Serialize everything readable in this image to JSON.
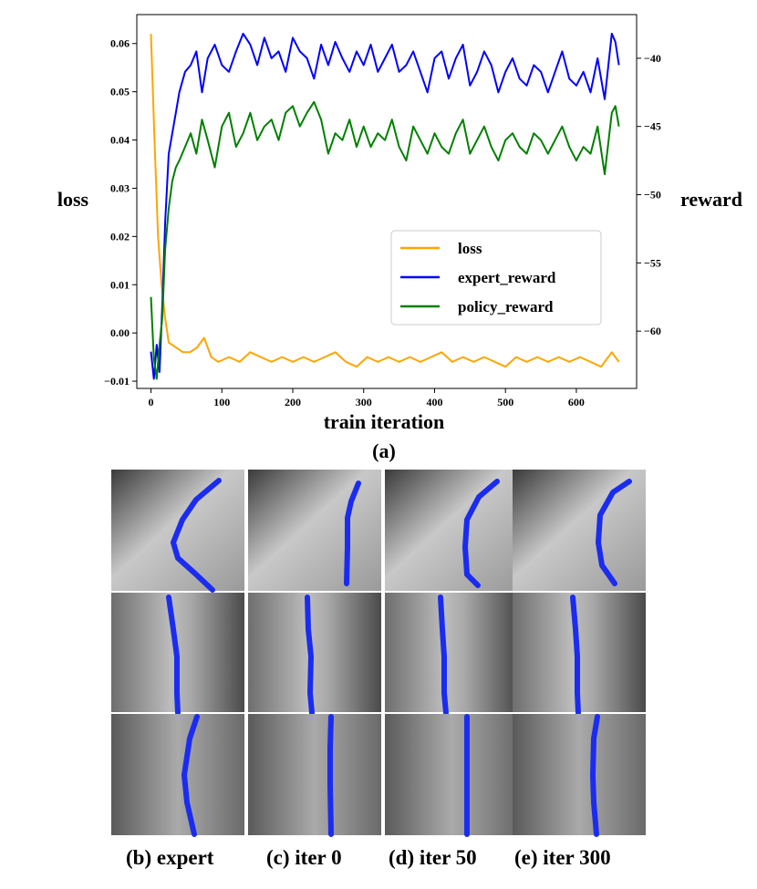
{
  "chart_data": {
    "type": "line",
    "xlabel": "train iteration",
    "ylabel_left": "loss",
    "ylabel_right": "reward",
    "xlim": [
      -20,
      685
    ],
    "ylim_left": [
      -0.0115,
      0.066
    ],
    "ylim_right": [
      -64.2,
      -36.8
    ],
    "x_ticks": [
      0,
      100,
      200,
      300,
      400,
      500,
      600
    ],
    "y_left_ticks": [
      -0.01,
      0.0,
      0.01,
      0.02,
      0.03,
      0.04,
      0.05,
      0.06
    ],
    "y_left_tick_labels": [
      "−0.01",
      "0.00",
      "0.01",
      "0.02",
      "0.03",
      "0.04",
      "0.05",
      "0.06"
    ],
    "y_right_ticks": [
      -60,
      -55,
      -50,
      -45,
      -40
    ],
    "y_right_tick_labels": [
      "−60",
      "−55",
      "−50",
      "−45",
      "−40"
    ],
    "legend_position": "center-right",
    "series": [
      {
        "name": "loss",
        "axis": "left",
        "color": "#FFA500",
        "x": [
          0,
          5,
          10,
          15,
          20,
          25,
          35,
          45,
          55,
          65,
          75,
          85,
          95,
          110,
          125,
          140,
          155,
          170,
          185,
          200,
          215,
          230,
          245,
          260,
          275,
          290,
          305,
          320,
          335,
          350,
          365,
          380,
          395,
          410,
          425,
          440,
          455,
          470,
          485,
          500,
          515,
          530,
          545,
          560,
          575,
          590,
          605,
          620,
          635,
          650,
          660
        ],
        "y": [
          0.062,
          0.04,
          0.02,
          0.01,
          0.003,
          -0.002,
          -0.003,
          -0.004,
          -0.004,
          -0.003,
          -0.001,
          -0.005,
          -0.006,
          -0.005,
          -0.006,
          -0.004,
          -0.005,
          -0.006,
          -0.005,
          -0.006,
          -0.005,
          -0.006,
          -0.005,
          -0.004,
          -0.006,
          -0.007,
          -0.005,
          -0.006,
          -0.005,
          -0.006,
          -0.005,
          -0.006,
          -0.005,
          -0.004,
          -0.006,
          -0.005,
          -0.006,
          -0.005,
          -0.006,
          -0.007,
          -0.005,
          -0.006,
          -0.005,
          -0.006,
          -0.005,
          -0.006,
          -0.005,
          -0.006,
          -0.007,
          -0.004,
          -0.006
        ]
      },
      {
        "name": "expert_reward",
        "axis": "right",
        "color": "#0000FF",
        "x": [
          0,
          4,
          8,
          12,
          16,
          20,
          25,
          30,
          35,
          40,
          48,
          56,
          64,
          72,
          80,
          90,
          100,
          110,
          120,
          130,
          140,
          150,
          160,
          170,
          180,
          190,
          200,
          210,
          220,
          230,
          240,
          250,
          260,
          270,
          280,
          290,
          300,
          310,
          320,
          330,
          340,
          350,
          360,
          370,
          380,
          390,
          400,
          410,
          420,
          430,
          440,
          450,
          460,
          470,
          480,
          490,
          500,
          510,
          520,
          530,
          540,
          550,
          560,
          570,
          580,
          590,
          600,
          610,
          620,
          630,
          640,
          650,
          655,
          660
        ],
        "y": [
          -61.5,
          -63.5,
          -61.0,
          -63.0,
          -58.0,
          -52.0,
          -47.0,
          -45.5,
          -44.0,
          -42.5,
          -41.0,
          -40.5,
          -39.5,
          -42.5,
          -40.0,
          -39.0,
          -40.5,
          -41.0,
          -39.5,
          -38.2,
          -39.0,
          -40.5,
          -38.5,
          -40.0,
          -39.5,
          -41.0,
          -38.5,
          -39.5,
          -40.0,
          -41.5,
          -39.0,
          -40.5,
          -38.8,
          -40.0,
          -41.0,
          -39.5,
          -40.5,
          -39.0,
          -41.0,
          -40.0,
          -39.0,
          -41.0,
          -40.5,
          -39.5,
          -41.0,
          -42.5,
          -40.0,
          -39.5,
          -41.5,
          -40.0,
          -39.0,
          -42.0,
          -41.0,
          -39.5,
          -40.5,
          -42.5,
          -41.0,
          -40.0,
          -41.5,
          -42.0,
          -40.5,
          -41.0,
          -42.5,
          -41.0,
          -39.5,
          -41.5,
          -42.0,
          -41.0,
          -42.5,
          -40.0,
          -43.0,
          -38.2,
          -38.8,
          -40.5
        ]
      },
      {
        "name": "policy_reward",
        "axis": "right",
        "color": "#008000",
        "x": [
          0,
          4,
          8,
          12,
          16,
          20,
          25,
          30,
          35,
          40,
          48,
          56,
          64,
          72,
          80,
          90,
          100,
          110,
          120,
          130,
          140,
          150,
          160,
          170,
          180,
          190,
          200,
          210,
          220,
          230,
          240,
          250,
          260,
          270,
          280,
          290,
          300,
          310,
          320,
          330,
          340,
          350,
          360,
          370,
          380,
          390,
          400,
          410,
          420,
          430,
          440,
          450,
          460,
          470,
          480,
          490,
          500,
          510,
          520,
          530,
          540,
          550,
          560,
          570,
          580,
          590,
          600,
          610,
          620,
          630,
          640,
          650,
          655,
          660
        ],
        "y": [
          -57.5,
          -62.0,
          -63.5,
          -61.0,
          -59.0,
          -54.0,
          -51.0,
          -49.0,
          -48.0,
          -47.5,
          -46.5,
          -45.5,
          -47.0,
          -44.5,
          -46.0,
          -48.0,
          -45.0,
          -44.0,
          -46.5,
          -45.5,
          -44.0,
          -46.0,
          -45.0,
          -44.5,
          -46.0,
          -44.0,
          -43.5,
          -45.0,
          -44.0,
          -43.2,
          -44.5,
          -47.0,
          -45.5,
          -46.0,
          -44.5,
          -46.5,
          -45.0,
          -46.5,
          -45.5,
          -46.0,
          -44.5,
          -46.5,
          -47.5,
          -45.0,
          -46.0,
          -47.0,
          -45.5,
          -46.5,
          -47.0,
          -45.5,
          -44.5,
          -47.0,
          -46.0,
          -45.0,
          -46.5,
          -47.5,
          -46.0,
          -45.5,
          -46.5,
          -47.0,
          -45.5,
          -46.0,
          -47.0,
          -46.0,
          -45.0,
          -46.5,
          -47.5,
          -46.5,
          -47.0,
          -45.0,
          -48.5,
          -44.0,
          -43.5,
          -45.0
        ]
      }
    ]
  },
  "figure": {
    "panel_label": "(a)",
    "captions": [
      "(b) expert",
      "(c) iter 0",
      "(d) iter 50",
      "(e) iter 300"
    ]
  }
}
